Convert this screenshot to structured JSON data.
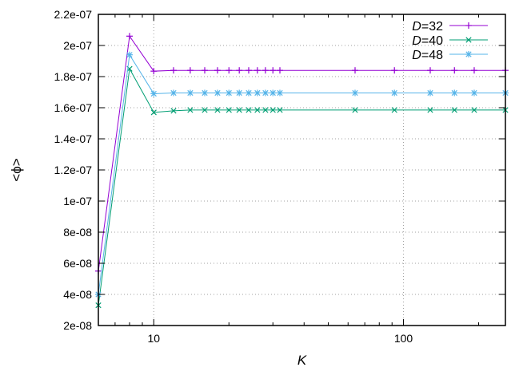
{
  "chart_data": {
    "type": "line",
    "xscale": "log",
    "xlabel": "K",
    "ylabel": "<ϕ>",
    "xlim": [
      6,
      256
    ],
    "ylim": [
      2e-08,
      2.2e-07
    ],
    "xticks": [
      {
        "value": 10,
        "label": "10"
      },
      {
        "value": 100,
        "label": "100"
      }
    ],
    "yticks": [
      {
        "value": 2e-08,
        "label": "2e-08"
      },
      {
        "value": 4e-08,
        "label": "4e-08"
      },
      {
        "value": 6e-08,
        "label": "6e-08"
      },
      {
        "value": 8e-08,
        "label": "8e-08"
      },
      {
        "value": 1e-07,
        "label": "1e-07"
      },
      {
        "value": 1.2e-07,
        "label": "1.2e-07"
      },
      {
        "value": 1.4e-07,
        "label": "1.4e-07"
      },
      {
        "value": 1.6e-07,
        "label": "1.6e-07"
      },
      {
        "value": 1.8e-07,
        "label": "1.8e-07"
      },
      {
        "value": 2e-07,
        "label": "2e-07"
      },
      {
        "value": 2.2e-07,
        "label": "2.2e-07"
      }
    ],
    "grid": true,
    "legend_position": "top-right",
    "x": [
      6,
      8,
      10,
      12,
      14,
      16,
      18,
      20,
      22,
      24,
      26,
      28,
      30,
      32,
      64,
      92,
      128,
      160,
      192,
      256
    ],
    "series": [
      {
        "name": "D=32",
        "legend_italic": "D",
        "legend_rest": "=32",
        "marker": "plus",
        "color": "#9400d3",
        "values": [
          5.5e-08,
          2.06e-07,
          1.835e-07,
          1.84e-07,
          1.84e-07,
          1.84e-07,
          1.84e-07,
          1.84e-07,
          1.84e-07,
          1.84e-07,
          1.84e-07,
          1.84e-07,
          1.84e-07,
          1.84e-07,
          1.84e-07,
          1.84e-07,
          1.84e-07,
          1.84e-07,
          1.84e-07,
          1.84e-07
        ]
      },
      {
        "name": "D=40",
        "legend_italic": "D",
        "legend_rest": "=40",
        "marker": "x",
        "color": "#009e73",
        "values": [
          3.3e-08,
          1.85e-07,
          1.57e-07,
          1.58e-07,
          1.585e-07,
          1.585e-07,
          1.585e-07,
          1.585e-07,
          1.585e-07,
          1.585e-07,
          1.585e-07,
          1.585e-07,
          1.585e-07,
          1.585e-07,
          1.585e-07,
          1.585e-07,
          1.585e-07,
          1.585e-07,
          1.585e-07,
          1.585e-07
        ]
      },
      {
        "name": "D=48",
        "legend_italic": "D",
        "legend_rest": "=48",
        "marker": "star",
        "color": "#56b4e9",
        "values": [
          4e-08,
          1.94e-07,
          1.69e-07,
          1.695e-07,
          1.695e-07,
          1.695e-07,
          1.695e-07,
          1.695e-07,
          1.695e-07,
          1.695e-07,
          1.695e-07,
          1.695e-07,
          1.695e-07,
          1.695e-07,
          1.695e-07,
          1.695e-07,
          1.695e-07,
          1.695e-07,
          1.695e-07,
          1.695e-07
        ]
      }
    ]
  }
}
